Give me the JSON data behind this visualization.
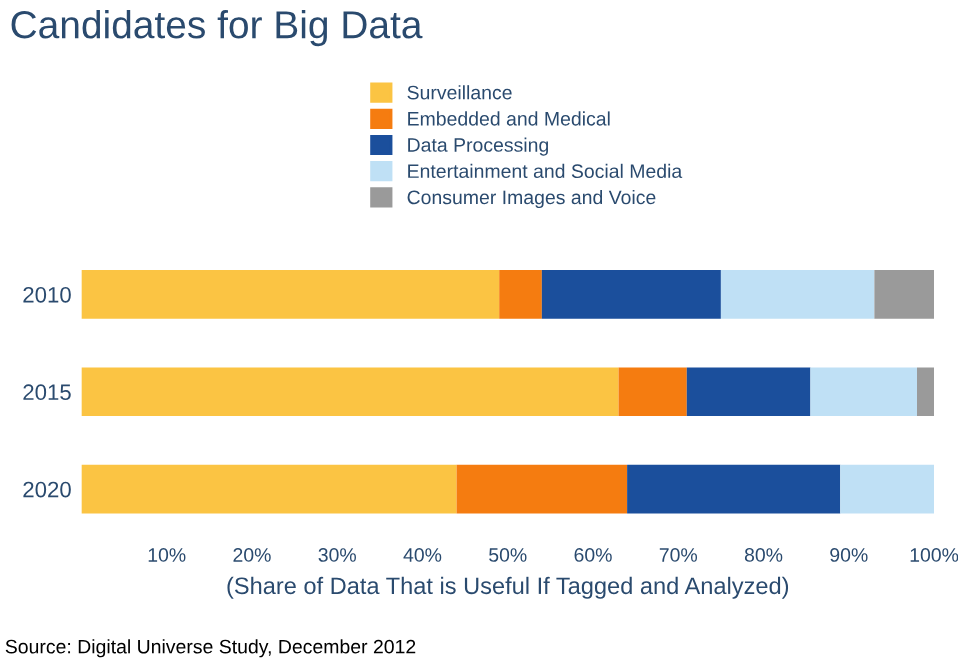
{
  "chart_data": {
    "type": "bar",
    "orientation": "horizontal",
    "stacked": true,
    "title": "Candidates for Big Data",
    "xlabel": "(Share of Data That is Useful If Tagged and Analyzed)",
    "categories": [
      "2010",
      "2015",
      "2020"
    ],
    "series": [
      {
        "name": "Surveillance",
        "color": "#fbc443",
        "values": [
          49,
          63,
          44
        ]
      },
      {
        "name": "Embedded and Medical",
        "color": "#f57c10",
        "values": [
          5,
          8,
          20
        ]
      },
      {
        "name": "Data Processing",
        "color": "#1b4f9c",
        "values": [
          21,
          14.5,
          25
        ]
      },
      {
        "name": "Entertainment and Social Media",
        "color": "#bfe0f5",
        "values": [
          18,
          12.5,
          11
        ]
      },
      {
        "name": "Consumer Images and Voice",
        "color": "#9a9a9a",
        "values": [
          7,
          2,
          0
        ]
      }
    ],
    "xlim": [
      0,
      100
    ],
    "xticks": [
      {
        "value": 10,
        "label": "10%"
      },
      {
        "value": 20,
        "label": "20%"
      },
      {
        "value": 30,
        "label": "30%"
      },
      {
        "value": 40,
        "label": "40%"
      },
      {
        "value": 50,
        "label": "50%"
      },
      {
        "value": 60,
        "label": "60%"
      },
      {
        "value": 70,
        "label": "70%"
      },
      {
        "value": 80,
        "label": "80%"
      },
      {
        "value": 90,
        "label": "90%"
      },
      {
        "value": 100,
        "label": "100%"
      }
    ],
    "legend": "top",
    "grid": false,
    "annotations": [
      "Source: Digital Universe Study, December 2012"
    ]
  }
}
